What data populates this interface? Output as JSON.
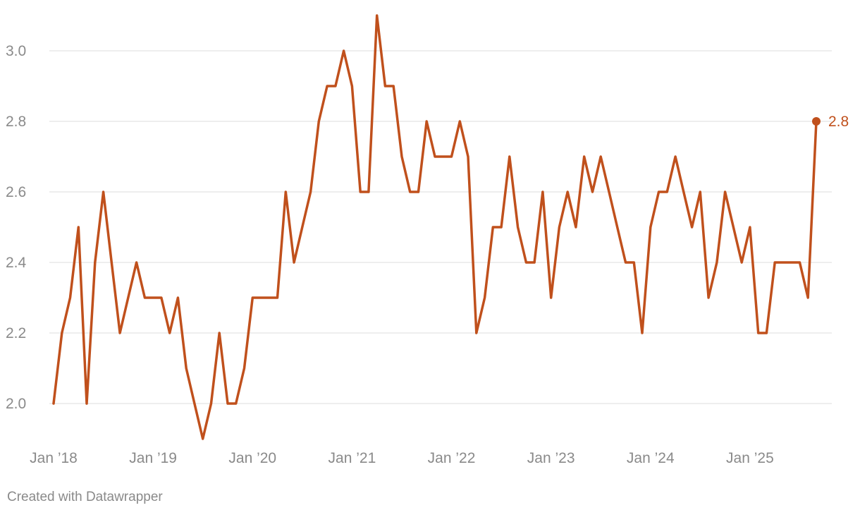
{
  "chart_data": {
    "type": "line",
    "title": "",
    "xlabel": "",
    "ylabel": "",
    "ylim": [
      1.9,
      3.1
    ],
    "y_ticks": [
      2.0,
      2.2,
      2.4,
      2.6,
      2.8,
      3.0
    ],
    "y_tick_labels": [
      "2.0",
      "2.2",
      "2.4",
      "2.6",
      "2.8",
      "3.0"
    ],
    "x_start": "2018-01",
    "x_end": "2025-09",
    "x_ticks": [
      "2018-01",
      "2019-01",
      "2020-01",
      "2021-01",
      "2022-01",
      "2023-01",
      "2024-01",
      "2025-01"
    ],
    "x_tick_labels": [
      "Jan ’18",
      "Jan ’19",
      "Jan ’20",
      "Jan ’21",
      "Jan ’22",
      "Jan ’23",
      "Jan ’24",
      "Jan ’25"
    ],
    "grid": true,
    "color": "#c0501c",
    "end_label": "2.8",
    "series": [
      {
        "values": [
          2.0,
          2.2,
          2.3,
          2.5,
          2.0,
          2.4,
          2.6,
          2.4,
          2.2,
          2.3,
          2.4,
          2.3,
          2.3,
          2.3,
          2.2,
          2.3,
          2.1,
          2.0,
          1.9,
          2.0,
          2.2,
          2.0,
          2.0,
          2.1,
          2.3,
          2.3,
          2.3,
          2.3,
          2.6,
          2.4,
          2.5,
          2.6,
          2.8,
          2.9,
          2.9,
          3.0,
          2.9,
          2.6,
          2.6,
          3.1,
          2.9,
          2.9,
          2.7,
          2.6,
          2.6,
          2.8,
          2.7,
          2.7,
          2.7,
          2.8,
          2.7,
          2.2,
          2.3,
          2.5,
          2.5,
          2.7,
          2.5,
          2.4,
          2.4,
          2.6,
          2.3,
          2.5,
          2.6,
          2.5,
          2.7,
          2.6,
          2.7,
          2.6,
          2.5,
          2.4,
          2.4,
          2.2,
          2.5,
          2.6,
          2.6,
          2.7,
          2.6,
          2.5,
          2.6,
          2.3,
          2.4,
          2.6,
          2.5,
          2.4,
          2.5,
          2.2,
          2.2,
          2.4,
          2.4,
          2.4,
          2.4,
          2.3,
          2.8
        ]
      }
    ]
  },
  "footer": {
    "credit": "Created with Datawrapper"
  }
}
